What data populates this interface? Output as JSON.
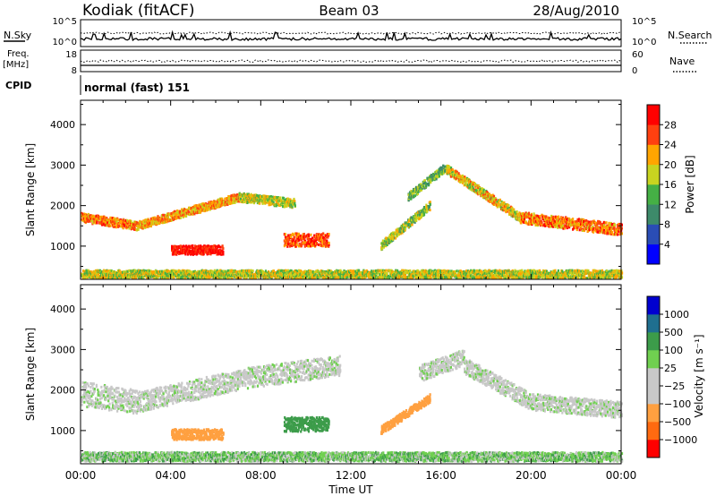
{
  "header": {
    "station": "Kodiak (fitACF)",
    "beam": "Beam 03",
    "date": "28/Aug/2010"
  },
  "top_panel": {
    "left_label": "N.Sky",
    "right_label": "N.Search",
    "left_ticks": [
      "10^5",
      "10^0"
    ],
    "right_ticks": [
      "10^5",
      "10^0"
    ]
  },
  "freq_panel": {
    "left_label_1": "Freq.",
    "left_label_2": "[MHz]",
    "right_label": "Nave",
    "left_ticks": [
      "18",
      "8"
    ],
    "right_ticks": [
      "60",
      "0"
    ]
  },
  "cpid": {
    "label": "CPID",
    "value": "normal (fast) 151"
  },
  "x_axis": {
    "label": "Time UT",
    "ticks": [
      "00:00",
      "04:00",
      "08:00",
      "12:00",
      "16:00",
      "20:00",
      "00:00"
    ]
  },
  "colors": {
    "power": [
      "#0000ff",
      "#2a4db5",
      "#3d8a6a",
      "#45b045",
      "#c8d420",
      "#ffa500",
      "#ff4010",
      "#ff0000"
    ],
    "velocity": [
      "#ff0000",
      "#ff6a10",
      "#ffa040",
      "#c8c8c8",
      "#c8c8c8",
      "#70d050",
      "#3c9c4a",
      "#1f6f8f",
      "#0000d0"
    ]
  },
  "chart_data": [
    {
      "type": "heatmap",
      "title": "",
      "ylabel": "Slant Range [km]",
      "xlabel": "",
      "y_ticks": [
        "1000",
        "2000",
        "3000",
        "4000"
      ],
      "ylim": [
        180,
        4600
      ],
      "xlim": [
        "00:00",
        "24:00"
      ],
      "colorbar": {
        "label": "Power [dB]",
        "ticks": [
          "4",
          "8",
          "12",
          "16",
          "20",
          "24",
          "28"
        ],
        "range": [
          0,
          32
        ]
      },
      "echo_bands": [
        {
          "t_start": 0.0,
          "t_end": 2.5,
          "range_start": 1700,
          "range_end": 1500,
          "width": 220,
          "power": 24
        },
        {
          "t_start": 2.5,
          "t_end": 7.0,
          "range_start": 1500,
          "range_end": 2200,
          "width": 200,
          "power": 22
        },
        {
          "t_start": 7.0,
          "t_end": 9.5,
          "range_start": 2200,
          "range_end": 2050,
          "width": 220,
          "power": 18
        },
        {
          "t_start": 4.0,
          "t_end": 6.3,
          "range_start": 900,
          "range_end": 900,
          "width": 220,
          "power": 30
        },
        {
          "t_start": 9.0,
          "t_end": 11.0,
          "range_start": 1150,
          "range_end": 1150,
          "width": 320,
          "power": 26
        },
        {
          "t_start": 13.3,
          "t_end": 15.5,
          "range_start": 1000,
          "range_end": 2000,
          "width": 200,
          "power": 16
        },
        {
          "t_start": 14.5,
          "t_end": 16.2,
          "range_start": 2200,
          "range_end": 2950,
          "width": 200,
          "power": 14
        },
        {
          "t_start": 16.2,
          "t_end": 19.5,
          "range_start": 2900,
          "range_end": 1700,
          "width": 220,
          "power": 20
        },
        {
          "t_start": 19.5,
          "t_end": 24.0,
          "range_start": 1700,
          "range_end": 1400,
          "width": 280,
          "power": 24
        },
        {
          "t_start": 0.0,
          "t_end": 24.0,
          "range_start": 300,
          "range_end": 300,
          "width": 200,
          "power": 18
        }
      ]
    },
    {
      "type": "heatmap",
      "title": "",
      "ylabel": "Slant Range [km]",
      "xlabel": "Time UT",
      "y_ticks": [
        "1000",
        "2000",
        "3000",
        "4000"
      ],
      "ylim": [
        180,
        4600
      ],
      "xlim": [
        "00:00",
        "24:00"
      ],
      "colorbar": {
        "label": "Velocity [m s⁻¹]",
        "ticks": [
          "1000",
          "500",
          "100",
          "25",
          "−25",
          "−100",
          "−500",
          "−1000"
        ],
        "range": [
          -1000,
          1000
        ]
      },
      "echo_bands": [
        {
          "t_start": 0.0,
          "t_end": 2.5,
          "range_start": 1900,
          "range_end": 1700,
          "width": 600,
          "velocity": 0
        },
        {
          "t_start": 2.5,
          "t_end": 7.5,
          "range_start": 1700,
          "range_end": 2300,
          "width": 500,
          "velocity": 0
        },
        {
          "t_start": 7.5,
          "t_end": 11.5,
          "range_start": 2300,
          "range_end": 2600,
          "width": 500,
          "velocity": 0
        },
        {
          "t_start": 4.0,
          "t_end": 6.3,
          "range_start": 900,
          "range_end": 900,
          "width": 260,
          "velocity": -200
        },
        {
          "t_start": 9.0,
          "t_end": 11.0,
          "range_start": 1150,
          "range_end": 1150,
          "width": 350,
          "velocity": 150
        },
        {
          "t_start": 13.3,
          "t_end": 15.5,
          "range_start": 1000,
          "range_end": 1800,
          "width": 200,
          "velocity": -150
        },
        {
          "t_start": 15.0,
          "t_end": 17.0,
          "range_start": 2400,
          "range_end": 2800,
          "width": 400,
          "velocity": 0
        },
        {
          "t_start": 17.0,
          "t_end": 20.0,
          "range_start": 2600,
          "range_end": 1700,
          "width": 400,
          "velocity": 0
        },
        {
          "t_start": 20.0,
          "t_end": 24.0,
          "range_start": 1700,
          "range_end": 1500,
          "width": 400,
          "velocity": 0
        },
        {
          "t_start": 0.0,
          "t_end": 24.0,
          "range_start": 350,
          "range_end": 350,
          "width": 220,
          "velocity": 40
        }
      ]
    }
  ]
}
